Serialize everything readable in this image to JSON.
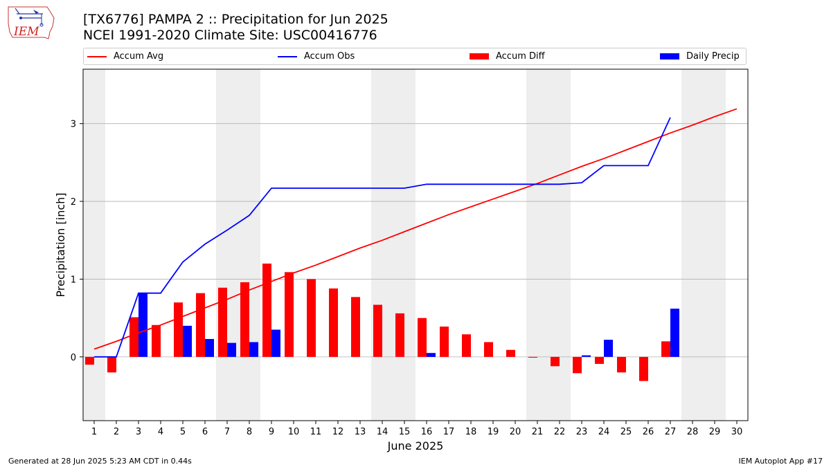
{
  "header": {
    "logo_text": "IEM",
    "title": "[TX6776] PAMPA 2 :: Precipitation for Jun 2025",
    "subtitle": "NCEI 1991-2020 Climate Site: USC00416776"
  },
  "legend": [
    {
      "label": "Accum Avg",
      "kind": "line",
      "color": "#ff0000"
    },
    {
      "label": "Accum Obs",
      "kind": "line",
      "color": "#0000ff"
    },
    {
      "label": "Accum Diff",
      "kind": "bar",
      "color": "#ff0000"
    },
    {
      "label": "Daily Precip",
      "kind": "bar",
      "color": "#0000ff"
    }
  ],
  "footer": {
    "left": "Generated at 28 Jun 2025 5:23 AM CDT in 0.44s",
    "right": "IEM Autoplot App #17"
  },
  "chart_data": {
    "type": "bar",
    "xlabel": "June 2025",
    "ylabel": "Precipitation [inch]",
    "x": [
      1,
      2,
      3,
      4,
      5,
      6,
      7,
      8,
      9,
      10,
      11,
      12,
      13,
      14,
      15,
      16,
      17,
      18,
      19,
      20,
      21,
      22,
      23,
      24,
      25,
      26,
      27,
      28,
      29,
      30
    ],
    "xlim": [
      0.5,
      30.5
    ],
    "ylim": [
      -0.82,
      3.7
    ],
    "yticks": [
      0,
      1,
      2,
      3
    ],
    "grid": "horizontal",
    "legend_position": "top",
    "weekend_shading": [
      [
        0.5,
        1.5
      ],
      [
        6.5,
        8.5
      ],
      [
        13.5,
        15.5
      ],
      [
        20.5,
        22.5
      ],
      [
        27.5,
        29.5
      ]
    ],
    "series": [
      {
        "name": "Accum Avg",
        "kind": "line",
        "color": "#ff0000",
        "values": [
          0.1,
          0.2,
          0.31,
          0.41,
          0.52,
          0.63,
          0.74,
          0.86,
          0.97,
          1.08,
          1.18,
          1.29,
          1.4,
          1.5,
          1.61,
          1.72,
          1.83,
          1.93,
          2.03,
          2.13,
          2.23,
          2.34,
          2.45,
          2.55,
          2.66,
          2.77,
          2.88,
          2.98,
          3.09,
          3.19
        ]
      },
      {
        "name": "Accum Obs",
        "kind": "line",
        "color": "#0000ff",
        "values": [
          0.0,
          0.0,
          0.82,
          0.82,
          1.22,
          1.45,
          1.63,
          1.82,
          2.17,
          2.17,
          2.17,
          2.17,
          2.17,
          2.17,
          2.17,
          2.22,
          2.22,
          2.22,
          2.22,
          2.22,
          2.22,
          2.22,
          2.24,
          2.46,
          2.46,
          2.46,
          3.08,
          null,
          null,
          null
        ]
      },
      {
        "name": "Accum Diff",
        "kind": "bar",
        "color": "#ff0000",
        "values": [
          -0.1,
          -0.2,
          0.51,
          0.41,
          0.7,
          0.82,
          0.89,
          0.96,
          1.2,
          1.09,
          1.0,
          0.88,
          0.77,
          0.67,
          0.56,
          0.5,
          0.39,
          0.29,
          0.19,
          0.09,
          -0.01,
          -0.12,
          -0.21,
          -0.09,
          -0.2,
          -0.31,
          0.2,
          null,
          null,
          null
        ]
      },
      {
        "name": "Daily Precip",
        "kind": "bar",
        "color": "#0000ff",
        "values": [
          0.0,
          0.0,
          0.82,
          0.0,
          0.4,
          0.23,
          0.18,
          0.19,
          0.35,
          0.0,
          0.0,
          0.0,
          0.0,
          0.0,
          0.0,
          0.05,
          0.0,
          0.0,
          0.0,
          0.0,
          0.0,
          0.0,
          0.02,
          0.22,
          0.0,
          0.0,
          0.62,
          null,
          null,
          null
        ]
      }
    ]
  }
}
